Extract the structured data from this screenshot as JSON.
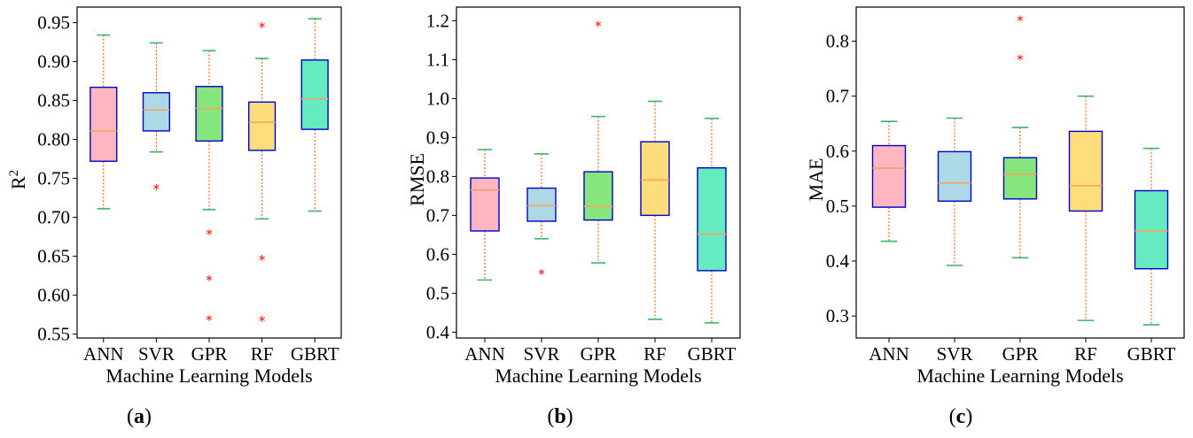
{
  "colors": {
    "ANN": "#ffb6c1",
    "SVR": "#add8e6",
    "GPR": "#86e67d",
    "RF": "#fddc7a",
    "GBRT": "#66ebc1",
    "box_edge": "#0000cd",
    "median": "#f4a460",
    "whisker": "#ff4500",
    "cap": "#3cb371",
    "outlier": "#ff0000"
  },
  "chart_data": [
    {
      "type": "box",
      "panel": "(a)",
      "xlabel": "Machine Learning Models",
      "ylabel": "R",
      "ylabel_sup": "2",
      "categories": [
        "ANN",
        "SVR",
        "GPR",
        "RF",
        "GBRT"
      ],
      "ylim": [
        0.545,
        0.97
      ],
      "yticks": [
        0.55,
        0.6,
        0.65,
        0.7,
        0.75,
        0.8,
        0.85,
        0.9,
        0.95
      ],
      "ytick_labels": [
        "0.55",
        "0.60",
        "0.65",
        "0.70",
        "0.75",
        "0.80",
        "0.85",
        "0.90",
        "0.95"
      ],
      "boxes": [
        {
          "name": "ANN",
          "whislo": 0.711,
          "q1": 0.772,
          "med": 0.811,
          "q3": 0.867,
          "whishi": 0.934,
          "fliers": []
        },
        {
          "name": "SVR",
          "whislo": 0.784,
          "q1": 0.811,
          "med": 0.838,
          "q3": 0.86,
          "whishi": 0.924,
          "fliers": [
            0.737
          ]
        },
        {
          "name": "GPR",
          "whislo": 0.71,
          "q1": 0.798,
          "med": 0.84,
          "q3": 0.868,
          "whishi": 0.914,
          "fliers": [
            0.679,
            0.62,
            0.569
          ]
        },
        {
          "name": "RF",
          "whislo": 0.698,
          "q1": 0.786,
          "med": 0.822,
          "q3": 0.848,
          "whishi": 0.904,
          "fliers": [
            0.945,
            0.646,
            0.568
          ]
        },
        {
          "name": "GBRT",
          "whislo": 0.708,
          "q1": 0.813,
          "med": 0.852,
          "q3": 0.902,
          "whishi": 0.955,
          "fliers": []
        }
      ]
    },
    {
      "type": "box",
      "panel": "(b)",
      "xlabel": "Machine Learning Models",
      "ylabel": "RMSE",
      "ylabel_sup": "",
      "categories": [
        "ANN",
        "SVR",
        "GPR",
        "RF",
        "GBRT"
      ],
      "ylim": [
        0.385,
        1.235
      ],
      "yticks": [
        0.4,
        0.5,
        0.6,
        0.7,
        0.8,
        0.9,
        1.0,
        1.1,
        1.2
      ],
      "ytick_labels": [
        "0.4",
        "0.5",
        "0.6",
        "0.7",
        "0.8",
        "0.9",
        "1.0",
        "1.1",
        "1.2"
      ],
      "boxes": [
        {
          "name": "ANN",
          "whislo": 0.534,
          "q1": 0.66,
          "med": 0.765,
          "q3": 0.796,
          "whishi": 0.869,
          "fliers": []
        },
        {
          "name": "SVR",
          "whislo": 0.64,
          "q1": 0.685,
          "med": 0.725,
          "q3": 0.77,
          "whishi": 0.858,
          "fliers": [
            0.551
          ]
        },
        {
          "name": "GPR",
          "whislo": 0.578,
          "q1": 0.688,
          "med": 0.723,
          "q3": 0.812,
          "whishi": 0.954,
          "fliers": [
            1.188
          ]
        },
        {
          "name": "RF",
          "whislo": 0.433,
          "q1": 0.7,
          "med": 0.791,
          "q3": 0.889,
          "whishi": 0.993,
          "fliers": []
        },
        {
          "name": "GBRT",
          "whislo": 0.424,
          "q1": 0.558,
          "med": 0.652,
          "q3": 0.822,
          "whishi": 0.949,
          "fliers": []
        }
      ]
    },
    {
      "type": "box",
      "panel": "(c)",
      "xlabel": "Machine Learning Models",
      "ylabel": "MAE",
      "ylabel_sup": "",
      "categories": [
        "ANN",
        "SVR",
        "GPR",
        "RF",
        "GBRT"
      ],
      "ylim": [
        0.26,
        0.862
      ],
      "yticks": [
        0.3,
        0.4,
        0.5,
        0.6,
        0.7,
        0.8
      ],
      "ytick_labels": [
        "0.3",
        "0.4",
        "0.5",
        "0.6",
        "0.7",
        "0.8"
      ],
      "boxes": [
        {
          "name": "ANN",
          "whislo": 0.436,
          "q1": 0.498,
          "med": 0.569,
          "q3": 0.61,
          "whishi": 0.654,
          "fliers": []
        },
        {
          "name": "SVR",
          "whislo": 0.392,
          "q1": 0.509,
          "med": 0.542,
          "q3": 0.599,
          "whishi": 0.66,
          "fliers": []
        },
        {
          "name": "GPR",
          "whislo": 0.406,
          "q1": 0.513,
          "med": 0.558,
          "q3": 0.588,
          "whishi": 0.643,
          "fliers": [
            0.839,
            0.768
          ]
        },
        {
          "name": "RF",
          "whislo": 0.292,
          "q1": 0.491,
          "med": 0.537,
          "q3": 0.636,
          "whishi": 0.7,
          "fliers": []
        },
        {
          "name": "GBRT",
          "whislo": 0.284,
          "q1": 0.386,
          "med": 0.455,
          "q3": 0.528,
          "whishi": 0.605,
          "fliers": []
        }
      ]
    }
  ]
}
